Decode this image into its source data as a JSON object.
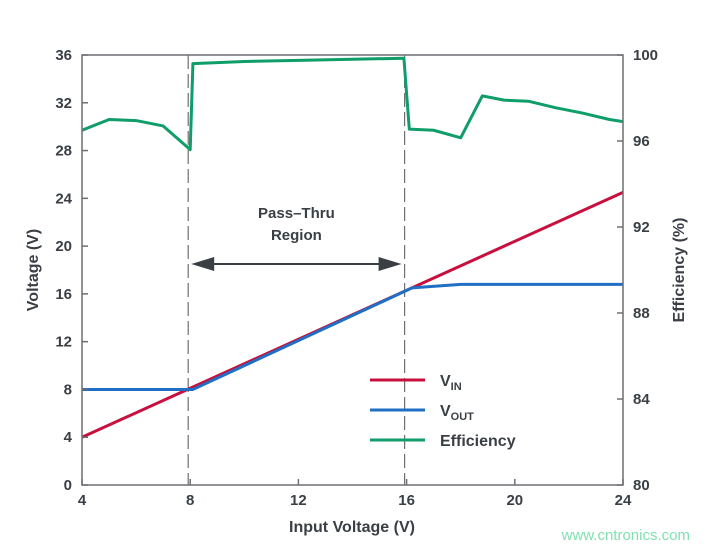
{
  "chart_data": {
    "type": "line",
    "xlabel": "Input Voltage (V)",
    "ylabel": "Voltage (V)",
    "y2label": "Efficiency (%)",
    "xlim": [
      4,
      24
    ],
    "ylim": [
      0,
      36
    ],
    "y2lim": [
      80,
      100
    ],
    "xticks": [
      "4",
      "8",
      "12",
      "16",
      "20",
      "24"
    ],
    "yticks": [
      "0",
      "4",
      "8",
      "12",
      "16",
      "20",
      "24",
      "28",
      "32",
      "36"
    ],
    "y2ticks": [
      "80",
      "84",
      "88",
      "92",
      "96",
      "100"
    ],
    "grid": false,
    "legend_placement": "bottom-right",
    "annotation": {
      "line1": "Pass–Thru",
      "line2": "Region",
      "x_start": 8,
      "x_end": 16
    },
    "series": [
      {
        "name": "VIN",
        "name_main": "V",
        "name_sub": "IN",
        "color": "#c8103e",
        "axis": "left",
        "x": [
          4,
          24
        ],
        "y": [
          4,
          24.5
        ]
      },
      {
        "name": "VOUT",
        "name_main": "V",
        "name_sub": "OUT",
        "color": "#1f6fc5",
        "axis": "left",
        "x": [
          4,
          8.1,
          16.2,
          18,
          24
        ],
        "y": [
          8,
          8,
          16.5,
          16.8,
          16.8
        ]
      },
      {
        "name": "Efficiency",
        "name_main": "Efficiency",
        "name_sub": "",
        "color": "#0f9e6a",
        "axis": "right",
        "x": [
          4,
          5,
          6,
          7,
          8,
          8.1,
          10,
          12,
          14,
          15.9,
          16.1,
          17,
          18,
          18.8,
          19.6,
          20.5,
          21.5,
          22.5,
          23.5,
          24
        ],
        "y": [
          96.5,
          97.0,
          96.95,
          96.7,
          95.6,
          99.6,
          99.7,
          99.75,
          99.8,
          99.85,
          96.55,
          96.5,
          96.15,
          98.1,
          97.9,
          97.85,
          97.55,
          97.3,
          97.0,
          96.9
        ]
      }
    ]
  },
  "watermark": "www.cntronics.com"
}
